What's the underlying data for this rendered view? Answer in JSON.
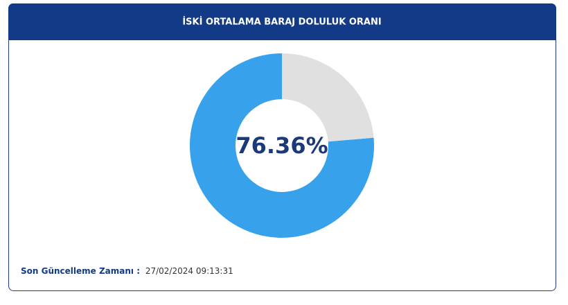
{
  "chart_data": {
    "type": "donut",
    "title": "İSKİ ORTALAMA BARAJ DOLULUK ORANI",
    "values": [
      76.36,
      23.64
    ],
    "value_labels": [
      "76.36%",
      null
    ],
    "colors": [
      "#37a2eb",
      "#e0e0e0"
    ]
  },
  "footer": {
    "label": "Son Güncelleme Zamanı :",
    "value": "27/02/2024 09:13:31"
  }
}
